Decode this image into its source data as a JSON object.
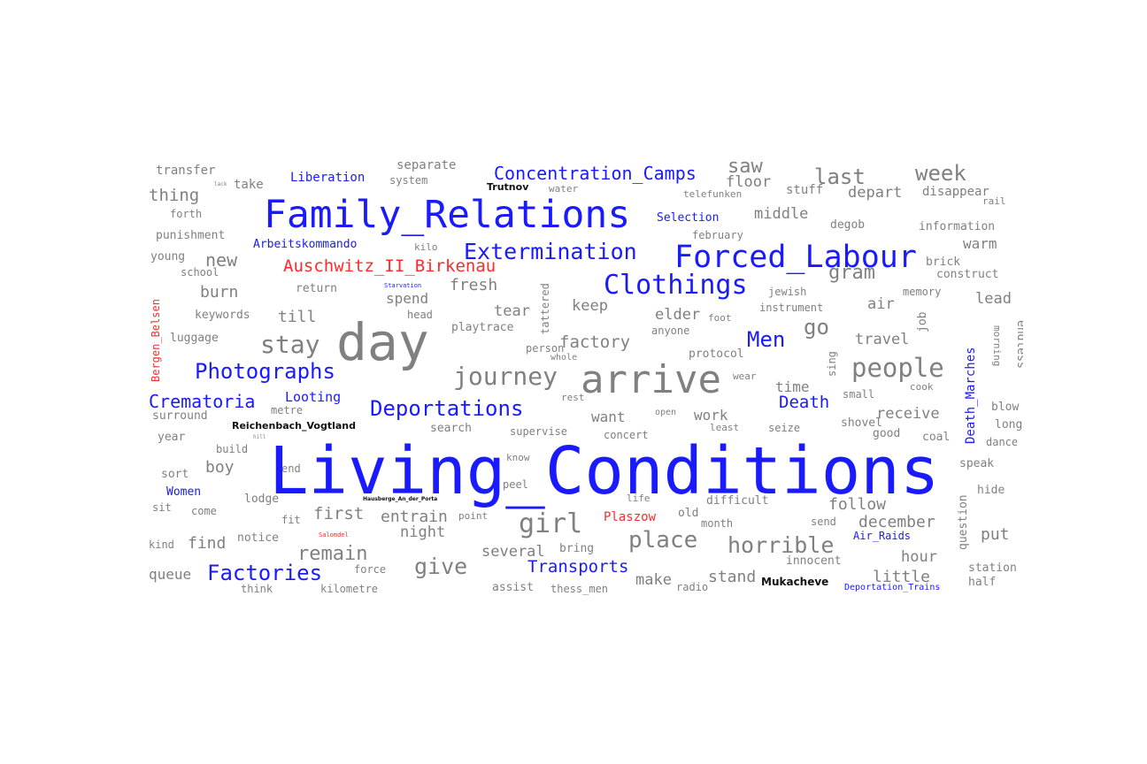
{
  "colors": {
    "keyword": "#1a1aff",
    "place": "#ff2a2a",
    "general": "#808080",
    "proper": "#111111"
  },
  "words": [
    {
      "text": "Living_Conditions",
      "color": "keyword"
    },
    {
      "text": "day",
      "color": "general"
    },
    {
      "text": "arrive",
      "color": "general"
    },
    {
      "text": "Family_Relations",
      "color": "keyword"
    },
    {
      "text": "Forced_Labour",
      "color": "keyword"
    },
    {
      "text": "Clothings",
      "color": "keyword"
    },
    {
      "text": "Extermination",
      "color": "keyword"
    },
    {
      "text": "Deportations",
      "color": "keyword"
    },
    {
      "text": "Photographs",
      "color": "keyword"
    },
    {
      "text": "Factories",
      "color": "keyword"
    },
    {
      "text": "Concentration_Camps",
      "color": "keyword"
    },
    {
      "text": "Auschwitz_II_Birkenau",
      "color": "place"
    },
    {
      "text": "Men",
      "color": "keyword"
    },
    {
      "text": "Crematoria",
      "color": "keyword"
    },
    {
      "text": "Transports",
      "color": "keyword"
    },
    {
      "text": "Death",
      "color": "keyword"
    },
    {
      "text": "Looting",
      "color": "keyword"
    },
    {
      "text": "Liberation",
      "color": "keyword"
    },
    {
      "text": "Arbeitskommando",
      "color": "keyword"
    },
    {
      "text": "Selection",
      "color": "keyword"
    },
    {
      "text": "Women",
      "color": "keyword"
    },
    {
      "text": "Air_Raids",
      "color": "keyword"
    },
    {
      "text": "Deportation_Trains",
      "color": "keyword"
    },
    {
      "text": "Plaszow",
      "color": "place"
    },
    {
      "text": "Death_Marches",
      "color": "keyword"
    },
    {
      "text": "Bergen_Belsen",
      "color": "place"
    },
    {
      "text": "Reichenbach_Vogtland",
      "color": "proper"
    },
    {
      "text": "Mukacheve",
      "color": "proper"
    },
    {
      "text": "Trutnov",
      "color": "proper"
    },
    {
      "text": "Starvation",
      "color": "keyword"
    },
    {
      "text": "Salomdel",
      "color": "place"
    },
    {
      "text": "Hausberge_An_der_Porta",
      "color": "proper"
    },
    {
      "text": "journey",
      "color": "general"
    },
    {
      "text": "people",
      "color": "general"
    },
    {
      "text": "girl",
      "color": "general"
    },
    {
      "text": "stay",
      "color": "general"
    },
    {
      "text": "place",
      "color": "general"
    },
    {
      "text": "horrible",
      "color": "general"
    },
    {
      "text": "give",
      "color": "general"
    },
    {
      "text": "remain",
      "color": "general"
    },
    {
      "text": "last",
      "color": "general"
    },
    {
      "text": "week",
      "color": "general"
    },
    {
      "text": "saw",
      "color": "general"
    },
    {
      "text": "gram",
      "color": "general"
    },
    {
      "text": "go",
      "color": "general"
    },
    {
      "text": "new",
      "color": "general"
    },
    {
      "text": "burn",
      "color": "general"
    },
    {
      "text": "till",
      "color": "general"
    },
    {
      "text": "factory",
      "color": "general"
    },
    {
      "text": "first",
      "color": "general"
    },
    {
      "text": "entrain",
      "color": "general"
    },
    {
      "text": "night",
      "color": "general"
    },
    {
      "text": "find",
      "color": "general"
    },
    {
      "text": "several",
      "color": "general"
    },
    {
      "text": "follow",
      "color": "general"
    },
    {
      "text": "december",
      "color": "general"
    },
    {
      "text": "hour",
      "color": "general"
    },
    {
      "text": "little",
      "color": "general"
    },
    {
      "text": "put",
      "color": "general"
    },
    {
      "text": "travel",
      "color": "general"
    },
    {
      "text": "receive",
      "color": "general"
    },
    {
      "text": "want",
      "color": "general"
    },
    {
      "text": "work",
      "color": "general"
    },
    {
      "text": "time",
      "color": "general"
    },
    {
      "text": "fresh",
      "color": "general"
    },
    {
      "text": "spend",
      "color": "general"
    },
    {
      "text": "tear",
      "color": "general"
    },
    {
      "text": "keep",
      "color": "general"
    },
    {
      "text": "elder",
      "color": "general"
    },
    {
      "text": "air",
      "color": "general"
    },
    {
      "text": "lead",
      "color": "general"
    },
    {
      "text": "warm",
      "color": "general"
    },
    {
      "text": "middle",
      "color": "general"
    },
    {
      "text": "depart",
      "color": "general"
    },
    {
      "text": "floor",
      "color": "general"
    },
    {
      "text": "stuff",
      "color": "general"
    },
    {
      "text": "disappear",
      "color": "general"
    },
    {
      "text": "information",
      "color": "general"
    },
    {
      "text": "degob",
      "color": "general"
    },
    {
      "text": "brick",
      "color": "general"
    },
    {
      "text": "construct",
      "color": "general"
    },
    {
      "text": "memory",
      "color": "general"
    },
    {
      "text": "jewish",
      "color": "general"
    },
    {
      "text": "instrument",
      "color": "general"
    },
    {
      "text": "transfer",
      "color": "general"
    },
    {
      "text": "separate",
      "color": "general"
    },
    {
      "text": "thing",
      "color": "general"
    },
    {
      "text": "take",
      "color": "general"
    },
    {
      "text": "system",
      "color": "general"
    },
    {
      "text": "forth",
      "color": "general"
    },
    {
      "text": "punishment",
      "color": "general"
    },
    {
      "text": "young",
      "color": "general"
    },
    {
      "text": "school",
      "color": "general"
    },
    {
      "text": "keywords",
      "color": "general"
    },
    {
      "text": "luggage",
      "color": "general"
    },
    {
      "text": "surround",
      "color": "general"
    },
    {
      "text": "year",
      "color": "general"
    },
    {
      "text": "build",
      "color": "general"
    },
    {
      "text": "boy",
      "color": "general"
    },
    {
      "text": "sort",
      "color": "general"
    },
    {
      "text": "sit",
      "color": "general"
    },
    {
      "text": "kind",
      "color": "general"
    },
    {
      "text": "queue",
      "color": "general"
    },
    {
      "text": "notice",
      "color": "general"
    },
    {
      "text": "force",
      "color": "general"
    },
    {
      "text": "think",
      "color": "general"
    },
    {
      "text": "kilometre",
      "color": "general"
    },
    {
      "text": "return",
      "color": "general"
    },
    {
      "text": "head",
      "color": "general"
    },
    {
      "text": "playtrace",
      "color": "general"
    },
    {
      "text": "person",
      "color": "general"
    },
    {
      "text": "whole",
      "color": "general"
    },
    {
      "text": "protocol",
      "color": "general"
    },
    {
      "text": "anyone",
      "color": "general"
    },
    {
      "text": "metre",
      "color": "general"
    },
    {
      "text": "search",
      "color": "general"
    },
    {
      "text": "supervise",
      "color": "general"
    },
    {
      "text": "concert",
      "color": "general"
    },
    {
      "text": "least",
      "color": "general"
    },
    {
      "text": "seize",
      "color": "general"
    },
    {
      "text": "shovel",
      "color": "general"
    },
    {
      "text": "good",
      "color": "general"
    },
    {
      "text": "coal",
      "color": "general"
    },
    {
      "text": "blow",
      "color": "general"
    },
    {
      "text": "long",
      "color": "general"
    },
    {
      "text": "dance",
      "color": "general"
    },
    {
      "text": "speak",
      "color": "general"
    },
    {
      "text": "hide",
      "color": "general"
    },
    {
      "text": "question",
      "color": "general"
    },
    {
      "text": "station",
      "color": "general"
    },
    {
      "text": "half",
      "color": "general"
    },
    {
      "text": "make",
      "color": "general"
    },
    {
      "text": "radio",
      "color": "general"
    },
    {
      "text": "stand",
      "color": "general"
    },
    {
      "text": "innocent",
      "color": "general"
    },
    {
      "text": "send",
      "color": "general"
    },
    {
      "text": "month",
      "color": "general"
    },
    {
      "text": "difficult",
      "color": "general"
    },
    {
      "text": "old",
      "color": "general"
    },
    {
      "text": "bring",
      "color": "general"
    },
    {
      "text": "assist",
      "color": "general"
    },
    {
      "text": "thess_men",
      "color": "general"
    },
    {
      "text": "point",
      "color": "general"
    },
    {
      "text": "peel",
      "color": "general"
    },
    {
      "text": "know",
      "color": "general"
    },
    {
      "text": "lodge",
      "color": "general"
    },
    {
      "text": "fit",
      "color": "general"
    },
    {
      "text": "end",
      "color": "general"
    },
    {
      "text": "rest",
      "color": "general"
    },
    {
      "text": "open",
      "color": "general"
    },
    {
      "text": "small",
      "color": "general"
    },
    {
      "text": "cook",
      "color": "general"
    },
    {
      "text": "endless",
      "color": "general"
    },
    {
      "text": "morning",
      "color": "general"
    },
    {
      "text": "sing",
      "color": "general"
    },
    {
      "text": "job",
      "color": "general"
    },
    {
      "text": "february",
      "color": "general"
    },
    {
      "text": "telefunken",
      "color": "general"
    },
    {
      "text": "water",
      "color": "general"
    },
    {
      "text": "rail",
      "color": "general"
    },
    {
      "text": "kilo",
      "color": "general"
    },
    {
      "text": "tattered",
      "color": "general"
    },
    {
      "text": "foot",
      "color": "general"
    },
    {
      "text": "wear",
      "color": "general"
    },
    {
      "text": "life",
      "color": "general"
    },
    {
      "text": "come",
      "color": "general"
    },
    {
      "text": "lack",
      "color": "general"
    },
    {
      "text": "hill",
      "color": "general"
    }
  ]
}
